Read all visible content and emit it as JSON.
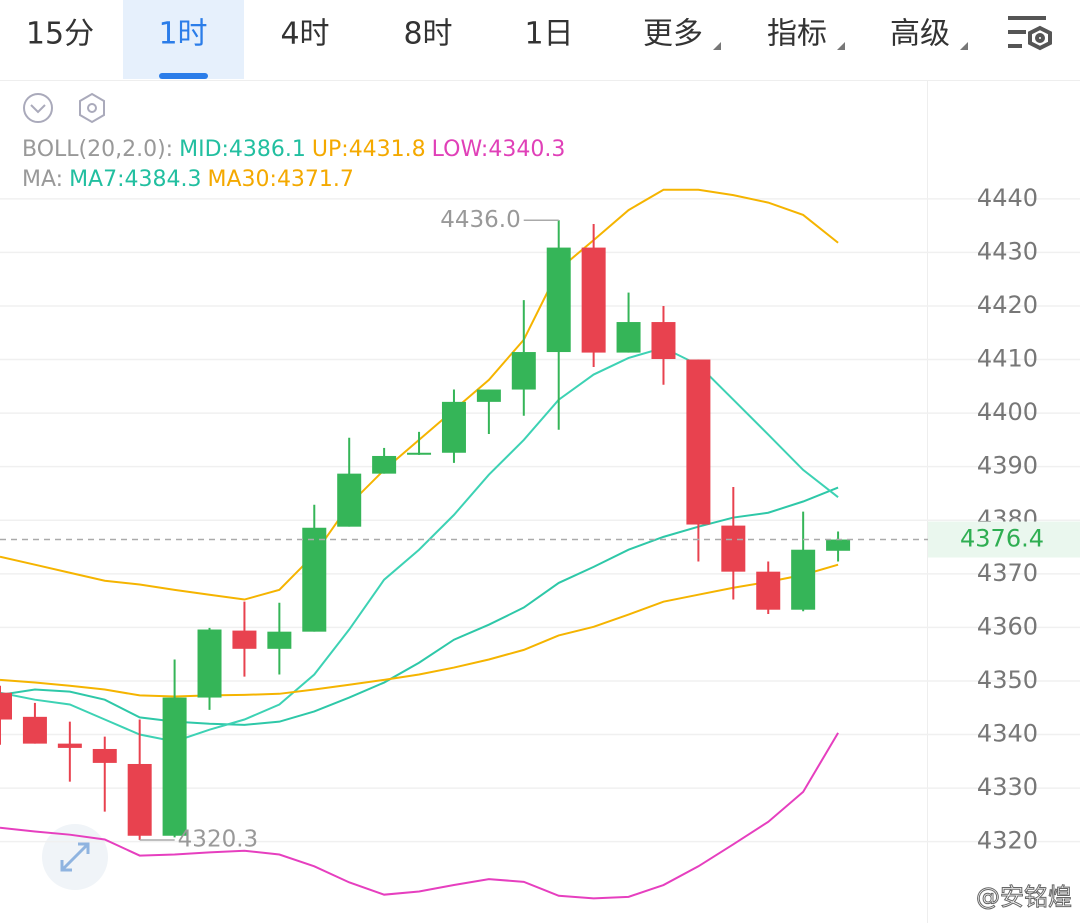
{
  "tabs": [
    "15分",
    "1时",
    "4时",
    "8时",
    "1日",
    "更多",
    "指标",
    "高级"
  ],
  "active_tab": 1,
  "watermark": "@安铭煌",
  "chart_data": {
    "type": "candlestick",
    "up_color": "#35b558",
    "down_color": "#e8424f",
    "ylim": [
      4305,
      4462
    ],
    "yticks": [
      4320,
      4330,
      4340,
      4350,
      4360,
      4370,
      4380,
      4390,
      4400,
      4410,
      4420,
      4430,
      4440
    ],
    "grid": true,
    "open": [
      4347.8,
      4343.3,
      4338.3,
      4337.3,
      4334.5,
      4321.1,
      4346.9,
      4359.4,
      4356.0,
      4359.2,
      4378.8,
      4388.7,
      4392.6,
      4392.6,
      4402.1,
      4404.4,
      4411.4,
      4430.9,
      4411.3,
      4417.0,
      4410.0,
      4379.0,
      4370.4,
      4363.3,
      4374.3
    ],
    "close": [
      4342.8,
      4338.3,
      4337.5,
      4334.7,
      4321.1,
      4346.9,
      4359.6,
      4356.0,
      4359.2,
      4378.6,
      4388.7,
      4392.0,
      4392.6,
      4402.1,
      4404.4,
      4411.4,
      4430.9,
      4411.3,
      4417.0,
      4410.1,
      4379.2,
      4370.4,
      4363.3,
      4374.5,
      4376.4
    ],
    "high": [
      4349.1,
      4345.9,
      4342.4,
      4339.6,
      4342.8,
      4354.0,
      4359.9,
      4364.8,
      4364.6,
      4382.9,
      4395.4,
      4393.5,
      4396.5,
      4404.4,
      4404.4,
      4421.1,
      4436.0,
      4435.3,
      4422.5,
      4420.0,
      4410.0,
      4386.2,
      4372.3,
      4381.6,
      4377.9
    ],
    "low": [
      4338.1,
      4338.3,
      4331.2,
      4325.6,
      4320.3,
      4320.8,
      4344.6,
      4350.8,
      4351.2,
      4359.2,
      4378.8,
      4388.7,
      4392.2,
      4390.7,
      4396.1,
      4399.5,
      4396.9,
      4408.6,
      4411.3,
      4405.3,
      4372.3,
      4365.2,
      4362.5,
      4363.0,
      4372.3
    ],
    "indicator_groups": [
      {
        "label": "BOLL(20,2.0):",
        "series": [
          0,
          1,
          2
        ]
      },
      {
        "label": "MA:",
        "series": [
          3,
          4
        ]
      }
    ],
    "series": [
      {
        "name": "MID:",
        "color": "#2ec8a8",
        "values": [
          4347.4,
          4348.4,
          4348.0,
          4346.5,
          4343.2,
          4342.4,
          4342.0,
          4341.8,
          4342.4,
          4344.3,
          4346.9,
          4349.7,
          4353.4,
          4357.7,
          4360.5,
          4363.7,
          4368.3,
          4371.3,
          4374.5,
          4376.9,
          4378.8,
          4380.5,
          4381.4,
          4383.5,
          4386.1
        ]
      },
      {
        "name": "UP:",
        "color": "#f5b400",
        "values": [
          4373.2,
          4371.7,
          4370.2,
          4368.7,
          4368.0,
          4367.0,
          4366.1,
          4365.2,
          4367.0,
          4373.6,
          4382.9,
          4389.4,
          4395.0,
          4400.6,
          4406.2,
          4413.7,
          4426.8,
          4432.3,
          4437.9,
          4441.7,
          4441.7,
          4440.7,
          4439.3,
          4437.0,
          4431.8
        ]
      },
      {
        "name": "LOW:",
        "color": "#e63fbf",
        "values": [
          4322.6,
          4321.9,
          4321.3,
          4320.4,
          4317.4,
          4317.6,
          4318.0,
          4318.3,
          4317.6,
          4315.4,
          4312.4,
          4310.1,
          4310.7,
          4311.9,
          4313.0,
          4312.5,
          4309.9,
          4309.4,
          4309.7,
          4311.9,
          4315.4,
          4319.5,
          4323.7,
          4329.3,
          4340.3
        ]
      },
      {
        "name": "MA7:",
        "color": "#3dd2b4",
        "values": [
          4347.8,
          4346.5,
          4345.6,
          4342.8,
          4340.0,
          4338.7,
          4340.9,
          4342.8,
          4345.6,
          4351.2,
          4359.6,
          4368.9,
          4374.5,
          4381.0,
          4388.5,
          4395.0,
          4402.5,
          4407.2,
          4410.3,
          4412.2,
          4409.0,
          4402.5,
          4396.0,
          4389.4,
          4384.3
        ]
      },
      {
        "name": "MA30:",
        "color": "#f5b400",
        "values": [
          4350.2,
          4349.7,
          4349.1,
          4348.4,
          4347.3,
          4347.1,
          4347.3,
          4347.4,
          4347.6,
          4348.4,
          4349.3,
          4350.2,
          4351.2,
          4352.5,
          4354.0,
          4355.8,
          4358.5,
          4360.1,
          4362.4,
          4364.8,
          4366.1,
          4367.4,
          4368.5,
          4369.8,
          4371.7
        ]
      }
    ],
    "annotations": [
      {
        "value": 4436.0,
        "label": "4436.0"
      },
      {
        "value": 4320.3,
        "label": "4320.3"
      }
    ]
  }
}
